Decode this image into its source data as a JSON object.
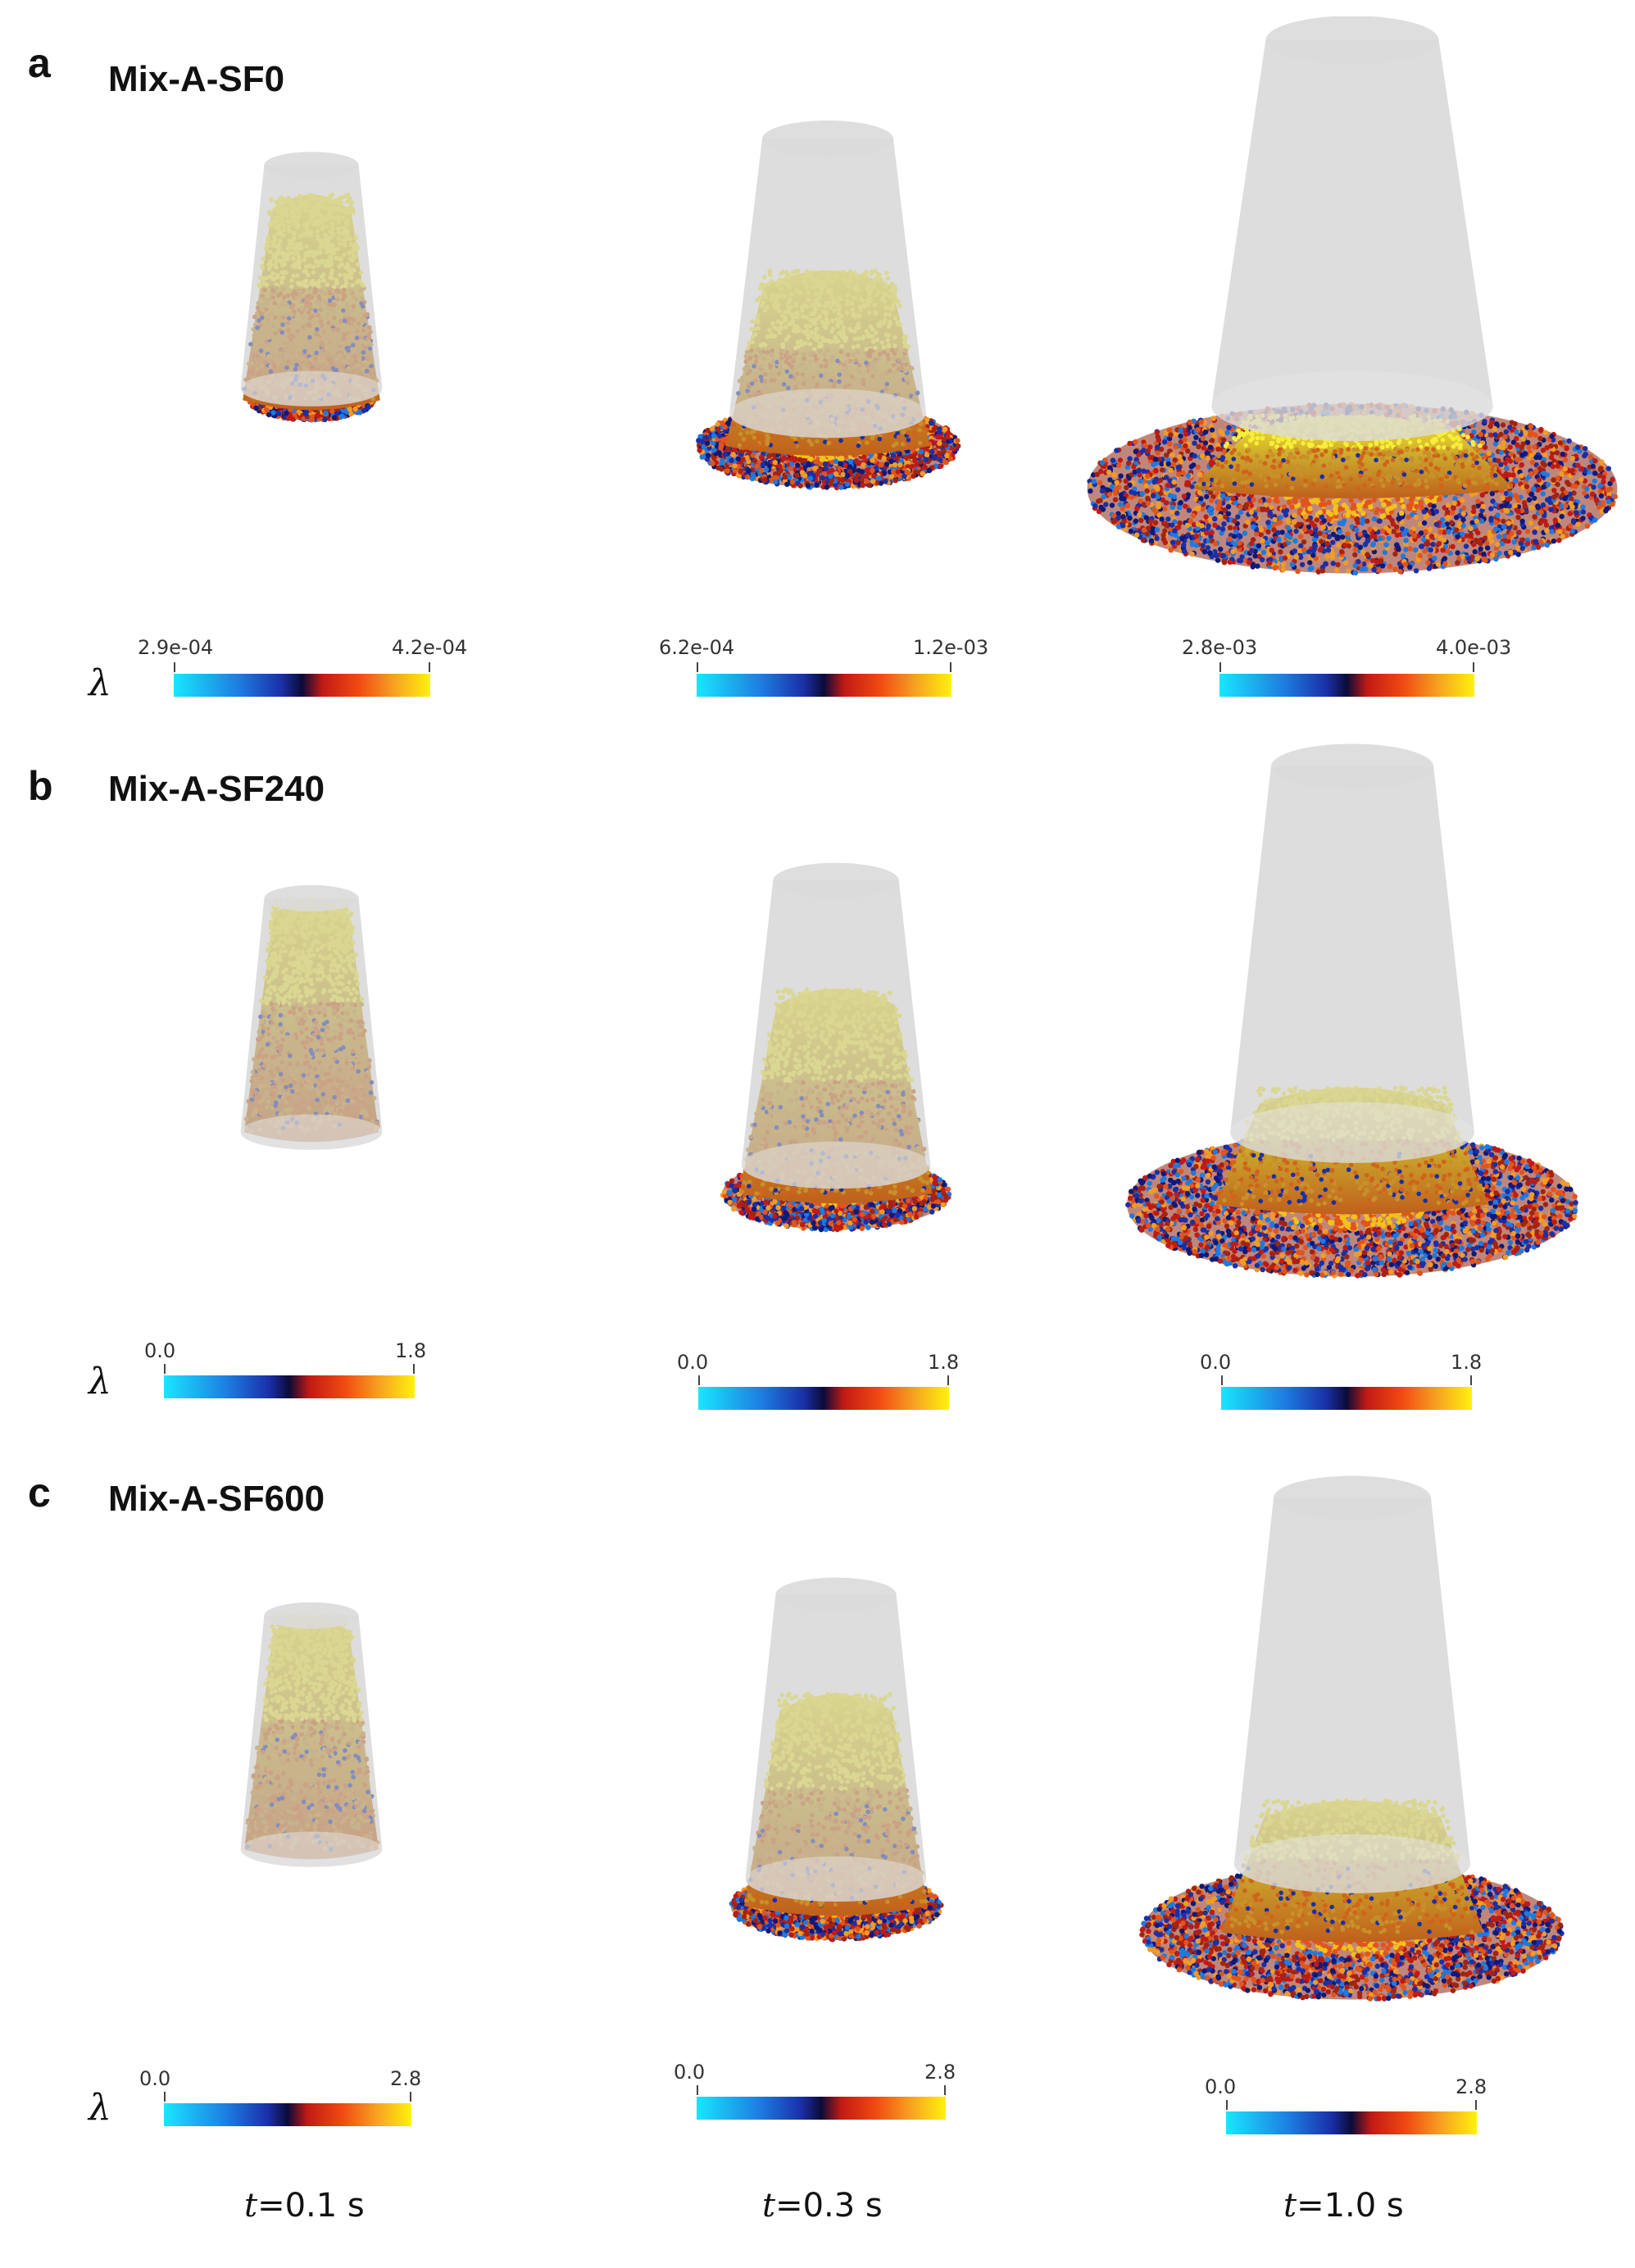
{
  "panels": [
    {
      "letter": "a",
      "title": "Mix-A-SF0",
      "colorbars": [
        {
          "min": "2.9e-04",
          "max": "4.2e-04"
        },
        {
          "min": "6.2e-04",
          "max": "1.2e-03"
        },
        {
          "min": "2.8e-03",
          "max": "4.0e-03"
        }
      ]
    },
    {
      "letter": "b",
      "title": "Mix-A-SF240",
      "colorbars": [
        {
          "min": "0.0",
          "max": "1.8"
        },
        {
          "min": "0.0",
          "max": "1.8"
        },
        {
          "min": "0.0",
          "max": "1.8"
        }
      ]
    },
    {
      "letter": "c",
      "title": "Mix-A-SF600",
      "colorbars": [
        {
          "min": "0.0",
          "max": "2.8"
        },
        {
          "min": "0.0",
          "max": "2.8"
        },
        {
          "min": "0.0",
          "max": "2.8"
        }
      ]
    }
  ],
  "colorbar_symbol": "λ",
  "time_labels": [
    {
      "var": "t",
      "value": "=0.1 s"
    },
    {
      "var": "t",
      "value": "=0.3 s"
    },
    {
      "var": "t",
      "value": "=1.0 s"
    }
  ],
  "colors": {
    "cone": "#c8c8c8",
    "particle_low": "#1a2fa8",
    "particle_mid": "#c11a14",
    "particle_high": "#ffea2a"
  }
}
